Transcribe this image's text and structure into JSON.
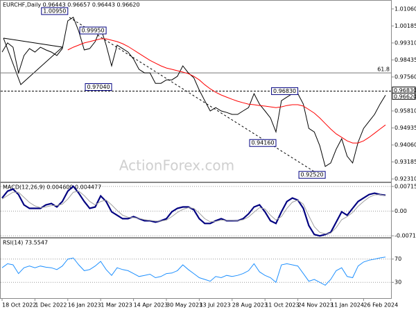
{
  "chart_data": [
    {
      "type": "line",
      "title": "EURCHF,Daily  0.96443 0.96657 0.96443 0.96620",
      "watermark": "ActionForex.com",
      "categories": [
        "18 Oct 2022",
        null,
        null,
        null,
        null,
        null,
        "1 Dec 2022",
        null,
        null,
        null,
        null,
        null,
        "16 Jan 2023",
        null,
        null,
        null,
        null,
        null,
        "1 Mar 2023",
        null,
        null,
        null,
        null,
        null,
        "14 Apr 2023",
        null,
        null,
        null,
        null,
        null,
        "30 May 2023",
        null,
        null,
        null,
        null,
        null,
        "13 Jul 2023",
        null,
        null,
        null,
        null,
        null,
        "28 Aug 2023",
        null,
        null,
        null,
        null,
        null,
        "11 Oct 2023",
        null,
        null,
        null,
        null,
        null,
        "24 Nov 2023",
        null,
        null,
        null,
        null,
        null,
        "11 Jan 2024",
        null,
        null,
        null,
        null,
        null,
        "26 Feb 2024",
        null,
        null,
        null,
        null
      ],
      "series": [
        {
          "color": "#000000",
          "values": [
            0.9884,
            0.9931,
            0.9909,
            0.9777,
            0.9866,
            0.9902,
            0.9884,
            0.9909,
            0.9895,
            0.9884,
            0.9866,
            0.9902,
            1.0045,
            1.0063,
            0.9991,
            0.9895,
            0.9902,
            0.9938,
            1.0009,
            0.992,
            0.9813,
            0.992,
            0.9902,
            0.9884,
            0.9848,
            0.9795,
            0.9777,
            0.9777,
            0.9723,
            0.9723,
            0.9741,
            0.9741,
            0.9759,
            0.9813,
            0.9777,
            0.9752,
            0.9688,
            0.9634,
            0.9581,
            0.9598,
            0.9581,
            0.9573,
            0.9563,
            0.9563,
            0.9581,
            0.9598,
            0.967,
            0.9616,
            0.9581,
            0.9545,
            0.9473,
            0.9634,
            0.9652,
            0.967,
            0.967,
            0.9616,
            0.9491,
            0.9473,
            0.9402,
            0.9295,
            0.9313,
            0.9384,
            0.9438,
            0.9348,
            0.9313,
            0.942,
            0.9491,
            0.9527,
            0.9563,
            0.9616,
            0.9662
          ]
        },
        {
          "color": "#ff0000",
          "values": [
            null,
            null,
            null,
            null,
            null,
            null,
            null,
            null,
            null,
            null,
            null,
            null,
            0.9895,
            0.9909,
            0.992,
            0.9931,
            0.9938,
            0.9945,
            0.9952,
            0.9952,
            0.9945,
            0.9938,
            0.9927,
            0.9913,
            0.9895,
            0.9877,
            0.9859,
            0.9841,
            0.9827,
            0.9813,
            0.9802,
            0.9795,
            0.9788,
            0.9781,
            0.9773,
            0.9759,
            0.9741,
            0.9716,
            0.9695,
            0.9677,
            0.9663,
            0.9652,
            0.9641,
            0.9631,
            0.9623,
            0.9616,
            0.9613,
            0.9609,
            0.9606,
            0.9602,
            0.9598,
            0.9602,
            0.9609,
            0.9613,
            0.9613,
            0.9606,
            0.9588,
            0.957,
            0.9545,
            0.9516,
            0.9488,
            0.9463,
            0.9445,
            0.9427,
            0.9416,
            0.9416,
            0.9427,
            0.9445,
            0.9466,
            0.9488,
            0.9509
          ]
        }
      ],
      "ylim": [
        0.9217,
        1.0152
      ],
      "yticks": [
        {
          "value": 1.0106,
          "label": "1.01060"
        },
        {
          "value": 1.00185,
          "label": "1.00185"
        },
        {
          "value": 0.9931,
          "label": "0.99310"
        },
        {
          "value": 0.98435,
          "label": "0.98435"
        },
        {
          "value": 0.9756,
          "label": "0.97560"
        },
        {
          "value": 0.9581,
          "label": "0.95810"
        },
        {
          "value": 0.94935,
          "label": "0.94935"
        },
        {
          "value": 0.9406,
          "label": "0.94060"
        },
        {
          "value": 0.93185,
          "label": "0.93185"
        },
        {
          "value": 0.9231,
          "label": "0.92310"
        }
      ],
      "levels": [
        {
          "value": 0.9777,
          "label": "61.8",
          "style": "solid"
        },
        {
          "value": 0.9683,
          "style": "dashed"
        }
      ],
      "price_tags": [
        {
          "value": 0.9683,
          "label": "0.96830"
        },
        {
          "value": 0.9662,
          "label": "0.96620"
        }
      ],
      "annotations": [
        {
          "value": 1.0095,
          "label": "1.00950",
          "at": 12
        },
        {
          "value": 0.9995,
          "label": "0.99950",
          "at": 19
        },
        {
          "value": 0.9704,
          "label": "0.97040",
          "at": 20
        },
        {
          "value": 0.9683,
          "label": "0.96830",
          "at": 54
        },
        {
          "value": 0.9416,
          "label": "0.94160",
          "at": 50
        },
        {
          "value": 0.9252,
          "label": "0.92520",
          "at": 59
        }
      ],
      "grid": false
    },
    {
      "type": "line",
      "title": "MACD(12,26,9) 0.004600 0.004477",
      "series": [
        {
          "color": "#000080",
          "width": 2.2,
          "values": [
            0.0038,
            0.0058,
            0.0064,
            0.0048,
            0.0018,
            0.0008,
            0.0008,
            0.0008,
            0.0018,
            0.0022,
            0.0012,
            0.0028,
            0.0058,
            0.0072,
            0.0052,
            0.0028,
            0.0008,
            0.0012,
            0.0044,
            0.0028,
            -0.0002,
            -0.0012,
            -0.0022,
            -0.0022,
            -0.0016,
            -0.0022,
            -0.0028,
            -0.0028,
            -0.0032,
            -0.0028,
            -0.0022,
            -0.0002,
            0.0008,
            0.0012,
            0.0012,
            0.0004,
            -0.0022,
            -0.0036,
            -0.0036,
            -0.0028,
            -0.0022,
            -0.0028,
            -0.0028,
            -0.0028,
            -0.0022,
            -0.0008,
            0.0012,
            0.0018,
            -0.0002,
            -0.0028,
            -0.0036,
            -0.0002,
            0.0028,
            0.0038,
            0.0032,
            0.0008,
            -0.0042,
            -0.0068,
            -0.0072,
            -0.0068,
            -0.0062,
            -0.0032,
            -0.0002,
            -0.0012,
            0.0008,
            0.0028,
            0.0038,
            0.0048,
            0.0052,
            0.0048,
            0.0046
          ]
        },
        {
          "color": "#a0a0a0",
          "width": 1,
          "values": [
            0.0035,
            0.0045,
            0.0055,
            0.0055,
            0.004,
            0.0025,
            0.0015,
            0.001,
            0.0012,
            0.0016,
            0.0016,
            0.002,
            0.0035,
            0.0055,
            0.0058,
            0.0045,
            0.0028,
            0.0018,
            0.0028,
            0.0032,
            0.0018,
            0.0002,
            -0.0012,
            -0.0018,
            -0.0019,
            -0.0021,
            -0.0025,
            -0.0027,
            -0.0029,
            -0.0029,
            -0.0026,
            -0.0016,
            -0.0004,
            0.0005,
            0.001,
            0.0008,
            -0.0006,
            -0.0022,
            -0.0031,
            -0.003,
            -0.0026,
            -0.0027,
            -0.0027,
            -0.0028,
            -0.0025,
            -0.0017,
            -0.0003,
            0.001,
            0.0006,
            -0.0012,
            -0.0026,
            -0.0016,
            0.0008,
            0.0026,
            0.0032,
            0.002,
            -0.0014,
            -0.0045,
            -0.0062,
            -0.0066,
            -0.0064,
            -0.0048,
            -0.0025,
            -0.0016,
            -0.0004,
            0.0014,
            0.0028,
            0.004,
            0.0047,
            0.0048,
            0.004477
          ]
        }
      ],
      "ylim": [
        -0.00756,
        0.00835
      ],
      "yticks": [
        0.007159,
        {
          "value": 0,
          "label": "0.00"
        },
        -0.007173
      ],
      "grid": true
    },
    {
      "type": "line",
      "title": "RSI(14) 73.5547",
      "series": [
        {
          "color": "#1e90ff",
          "width": 1,
          "values": [
            55,
            62,
            60,
            45,
            55,
            58,
            55,
            58,
            56,
            55,
            52,
            58,
            70,
            72,
            60,
            50,
            52,
            58,
            66,
            52,
            42,
            55,
            52,
            50,
            45,
            40,
            42,
            44,
            38,
            40,
            45,
            46,
            50,
            60,
            52,
            45,
            38,
            35,
            32,
            40,
            38,
            42,
            40,
            42,
            45,
            50,
            62,
            48,
            42,
            38,
            30,
            60,
            62,
            60,
            58,
            45,
            32,
            35,
            30,
            25,
            35,
            50,
            55,
            40,
            38,
            58,
            65,
            68,
            70,
            72,
            73.5547
          ]
        }
      ],
      "ylim": [
        2.9,
        106.5
      ],
      "yticks": [
        70,
        30
      ],
      "grid": true
    }
  ]
}
